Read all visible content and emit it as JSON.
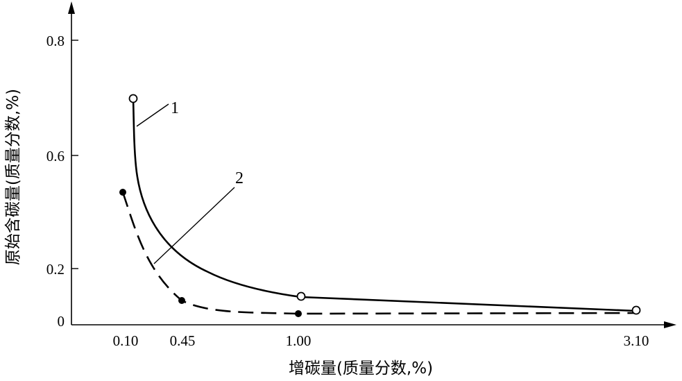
{
  "chart_data": {
    "type": "line",
    "xlabel": "增碳量(质量分数,%)",
    "ylabel": "原始含碳量(质量分数,%)",
    "x_ticks": [
      "0.10",
      "0.45",
      "1.00",
      "3.10"
    ],
    "y_ticks": [
      "0",
      "0.2",
      "0.6",
      "0.8"
    ],
    "origin_label": "0",
    "series": [
      {
        "name": "1",
        "style": "solid",
        "marker": "open-circle",
        "color": "#000000",
        "points": [
          {
            "x": 0.12,
            "y": 0.7
          },
          {
            "x": 1.0,
            "y": 0.1
          },
          {
            "x": 3.1,
            "y": 0.05
          }
        ]
      },
      {
        "name": "2",
        "style": "dashed",
        "marker": "filled-circle",
        "color": "#000000",
        "points": [
          {
            "x": 0.08,
            "y": 0.45
          },
          {
            "x": 0.45,
            "y": 0.08
          },
          {
            "x": 1.0,
            "y": 0.04
          }
        ]
      }
    ]
  }
}
